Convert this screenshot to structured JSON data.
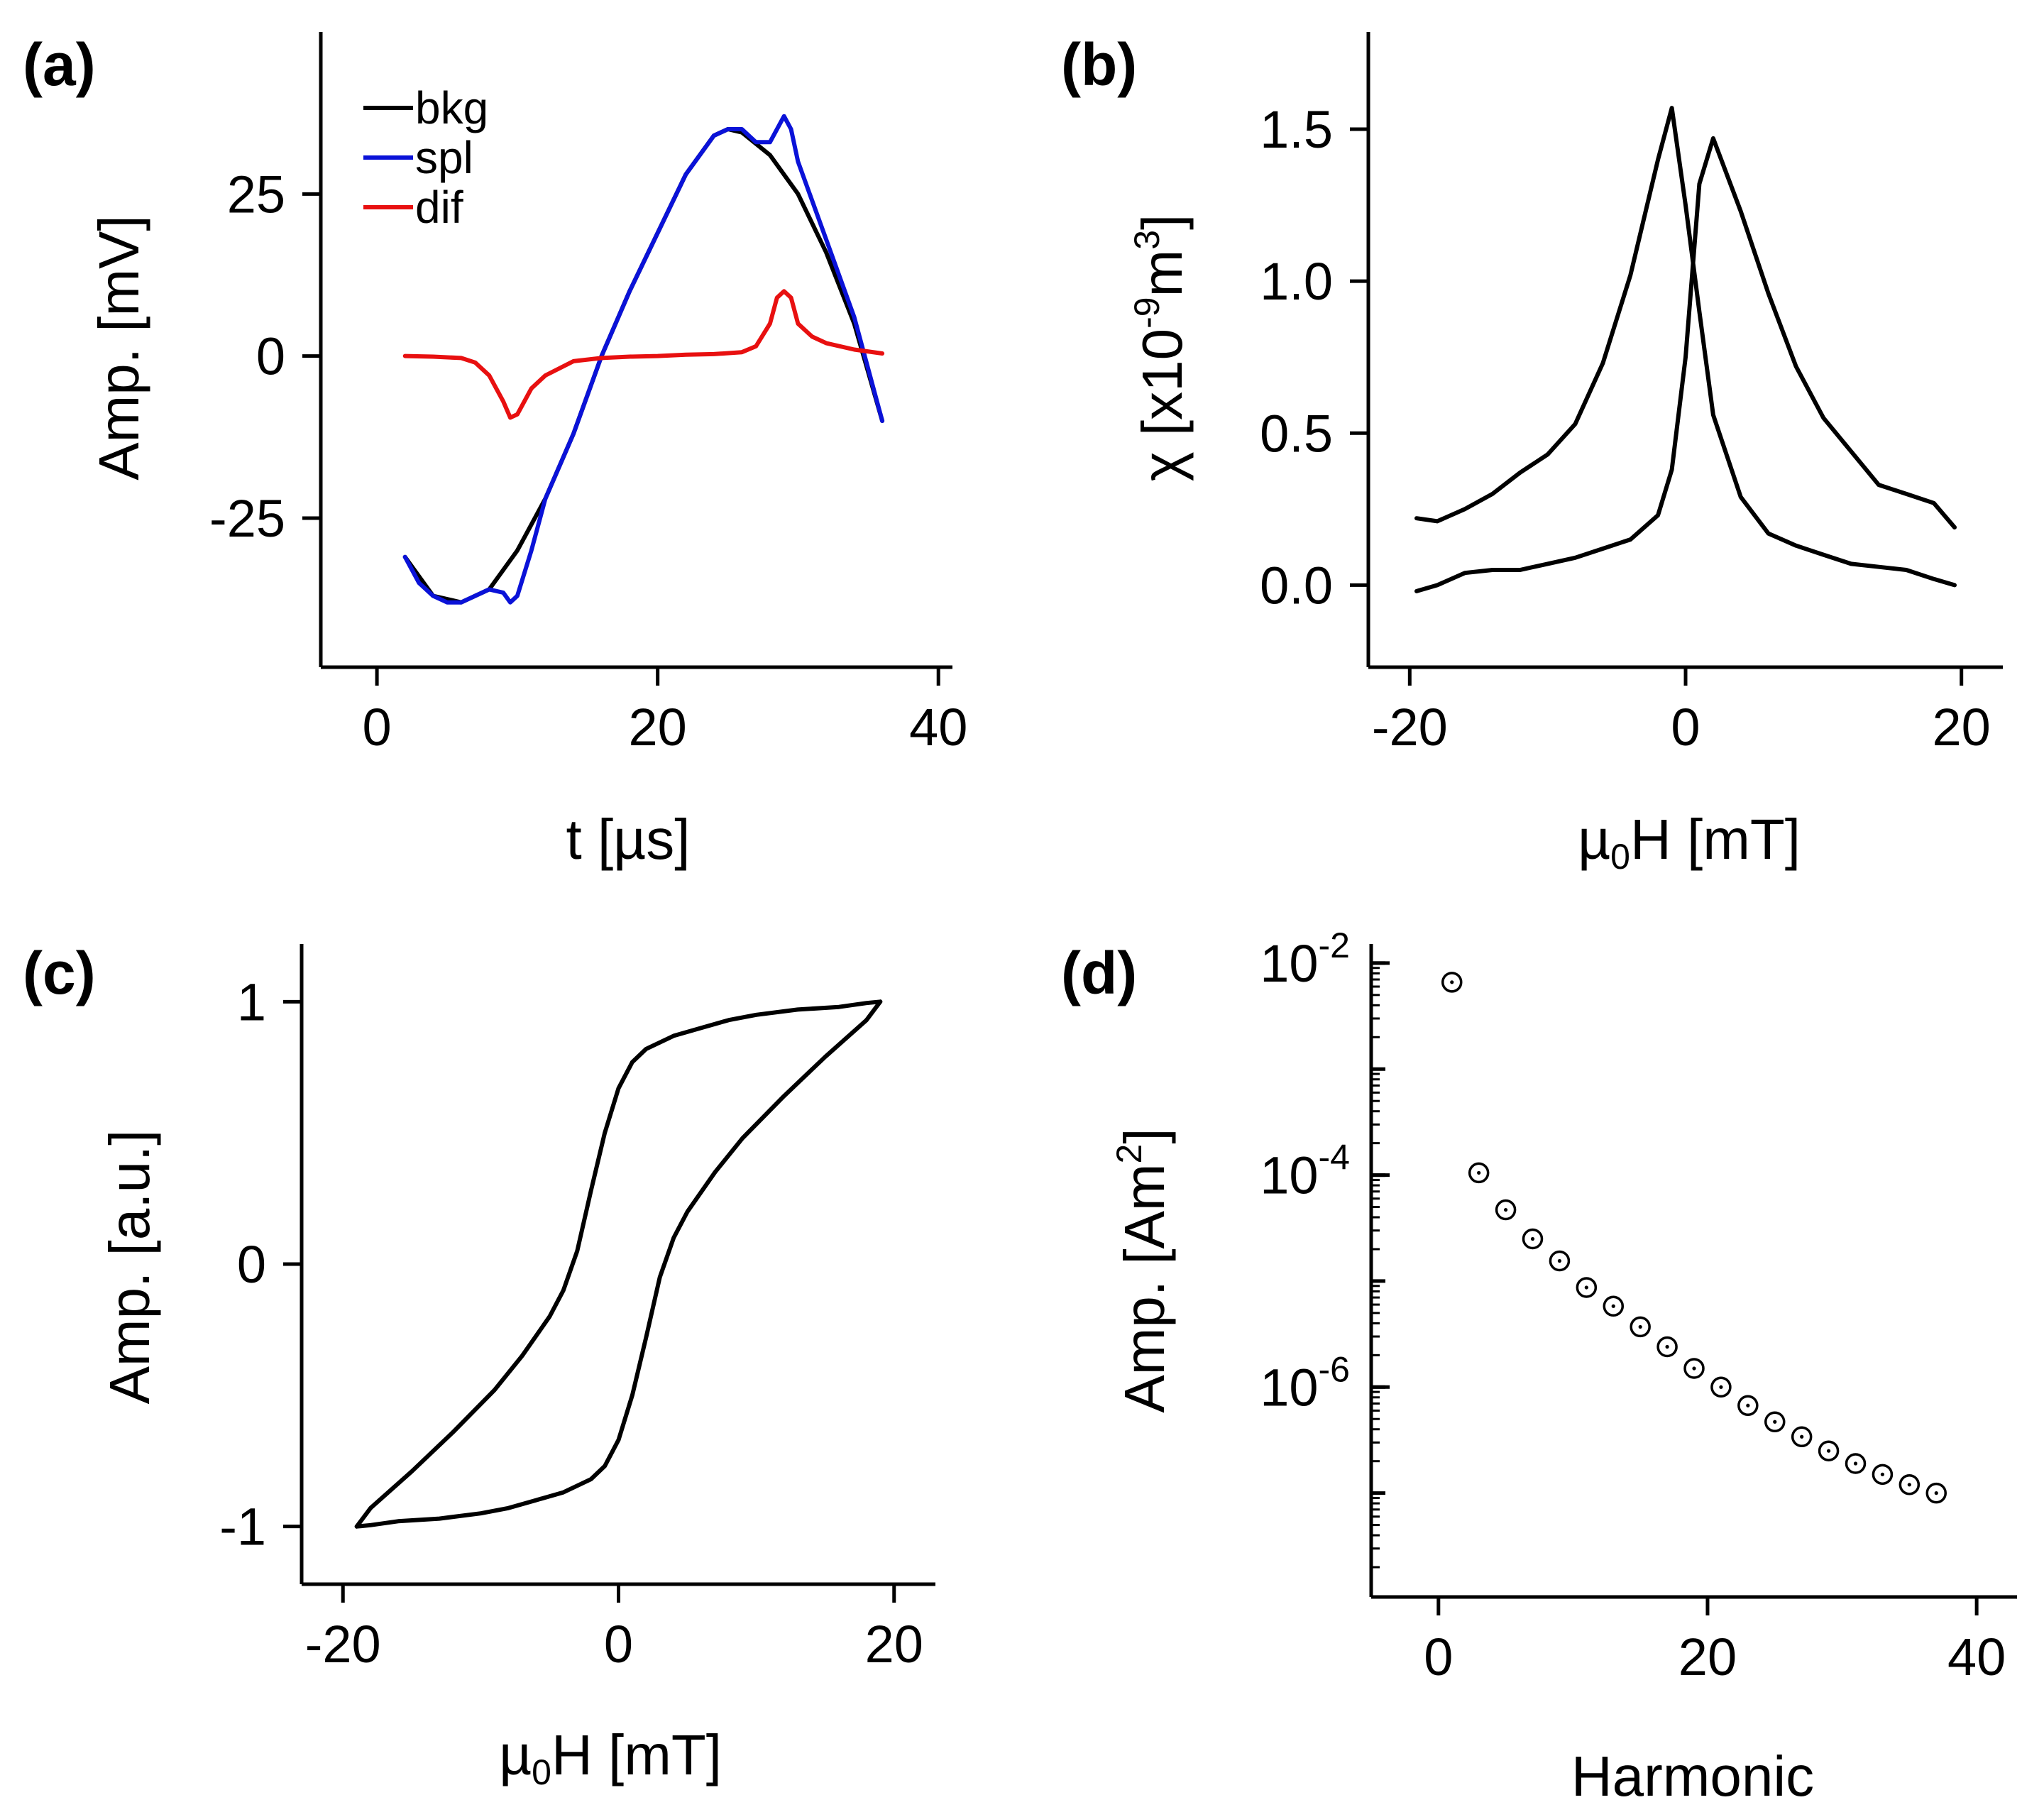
{
  "chart_data": [
    {
      "id": "a",
      "type": "line",
      "panel_label": "(a)",
      "xlabel": "t [µs]",
      "ylabel": "Amp. [mV]",
      "xlim": [
        -4,
        41
      ],
      "ylim": [
        -48,
        50
      ],
      "xticks": [
        0,
        20,
        40
      ],
      "yticks": [
        -25,
        0,
        25
      ],
      "legend": "top-left",
      "series": [
        {
          "name": "bkg",
          "color": "#000000",
          "x": [
            2,
            4,
            6,
            8,
            10,
            12,
            14,
            16,
            18,
            20,
            22,
            24,
            25,
            26,
            28,
            30,
            32,
            34,
            36
          ],
          "y": [
            -31,
            -37,
            -38,
            -36,
            -30,
            -22,
            -12,
            0,
            10,
            19,
            28,
            34,
            35,
            34.5,
            31,
            25,
            16,
            5,
            -10
          ]
        },
        {
          "name": "spl",
          "color": "#0a12d8",
          "x": [
            2,
            3,
            4,
            5,
            6,
            7,
            8,
            9,
            9.5,
            10,
            11,
            12,
            14,
            16,
            18,
            20,
            22,
            24,
            25,
            26,
            27,
            28,
            29,
            29.5,
            30,
            32,
            34,
            36
          ],
          "y": [
            -31,
            -35,
            -37,
            -38,
            -38,
            -37,
            -36,
            -36.5,
            -38,
            -37,
            -30,
            -22,
            -12,
            0,
            10,
            19,
            28,
            34,
            35,
            35,
            33,
            33,
            37,
            35,
            30,
            18,
            6,
            -10
          ]
        },
        {
          "name": "dif",
          "color": "#e81010",
          "x": [
            2,
            4,
            6,
            7,
            8,
            9,
            9.5,
            10,
            11,
            12,
            14,
            16,
            18,
            20,
            22,
            24,
            26,
            27,
            28,
            28.5,
            29,
            29.5,
            30,
            31,
            32,
            34,
            36
          ],
          "y": [
            0,
            -0.1,
            -0.3,
            -1,
            -3,
            -7,
            -9.5,
            -9,
            -5,
            -3,
            -0.8,
            -0.3,
            -0.1,
            0,
            0.2,
            0.3,
            0.6,
            1.5,
            5,
            9,
            10,
            9,
            5,
            3,
            2,
            1,
            0.4
          ]
        }
      ]
    },
    {
      "id": "b",
      "type": "line",
      "panel_label": "(b)",
      "xlabel": "µ0H [mT]",
      "ylabel": "χ [x10-9m3]",
      "xlim": [
        -23,
        23
      ],
      "ylim": [
        -0.27,
        1.82
      ],
      "xticks": [
        -20,
        0,
        20
      ],
      "yticks": [
        0.0,
        0.5,
        1.0,
        1.5
      ],
      "ytick_labels": [
        "0.0",
        "0.5",
        "1.0",
        "1.5"
      ],
      "series": [
        {
          "color": "#000000",
          "x": [
            -19.5,
            -18,
            -16,
            -14,
            -12,
            -10,
            -8,
            -6,
            -4,
            -2,
            -1,
            0,
            1,
            2,
            4,
            6,
            8,
            10,
            12,
            14,
            16,
            18,
            19.5
          ],
          "y": [
            0.22,
            0.21,
            0.25,
            0.3,
            0.37,
            0.43,
            0.53,
            0.73,
            1.02,
            1.4,
            1.57,
            1.25,
            0.9,
            0.56,
            0.29,
            0.17,
            0.13,
            0.1,
            0.07,
            0.06,
            0.05,
            0.02,
            0.0
          ]
        },
        {
          "color": "#000000",
          "x": [
            -19.5,
            -18,
            -16,
            -14,
            -12,
            -10,
            -8,
            -6,
            -4,
            -2,
            -1,
            0,
            1,
            2,
            4,
            6,
            8,
            10,
            12,
            14,
            16,
            18,
            19.5
          ],
          "y": [
            -0.02,
            0.0,
            0.04,
            0.05,
            0.05,
            0.07,
            0.09,
            0.12,
            0.15,
            0.23,
            0.38,
            0.75,
            1.32,
            1.47,
            1.23,
            0.96,
            0.72,
            0.55,
            0.44,
            0.33,
            0.3,
            0.27,
            0.19
          ]
        }
      ]
    },
    {
      "id": "c",
      "type": "line",
      "panel_label": "(c)",
      "xlabel": "µ0H [mT]",
      "ylabel": "Amp. [a.u.]",
      "xlim": [
        -23,
        23
      ],
      "ylim": [
        -1.22,
        1.22
      ],
      "xticks": [
        -20,
        0,
        20
      ],
      "yticks": [
        -1,
        0,
        1
      ],
      "series": [
        {
          "color": "#000000",
          "x": [
            -19,
            -18,
            -15,
            -12,
            -9,
            -7,
            -5,
            -4,
            -3,
            -2,
            -1,
            0,
            1,
            2,
            4,
            6,
            8,
            10,
            13,
            16,
            18,
            19
          ],
          "y": [
            -1.0,
            -0.93,
            -0.79,
            -0.64,
            -0.48,
            -0.35,
            -0.2,
            -0.1,
            0.05,
            0.28,
            0.5,
            0.67,
            0.77,
            0.82,
            0.87,
            0.9,
            0.93,
            0.95,
            0.97,
            0.98,
            0.995,
            1.0
          ]
        },
        {
          "color": "#000000",
          "x": [
            19,
            18,
            15,
            12,
            9,
            7,
            5,
            4,
            3,
            2,
            1,
            0,
            -1,
            -2,
            -4,
            -6,
            -8,
            -10,
            -13,
            -16,
            -18,
            -19
          ],
          "y": [
            1.0,
            0.93,
            0.79,
            0.64,
            0.48,
            0.35,
            0.2,
            0.1,
            -0.05,
            -0.28,
            -0.5,
            -0.67,
            -0.77,
            -0.82,
            -0.87,
            -0.9,
            -0.93,
            -0.95,
            -0.97,
            -0.98,
            -0.995,
            -1.0
          ]
        }
      ]
    },
    {
      "id": "d",
      "type": "scatter",
      "panel_label": "(d)",
      "xlabel": "Harmonic",
      "ylabel": "Amp. [Am2]",
      "xlim": [
        -5,
        43
      ],
      "ylim_log10": [
        -7.98,
        -1.82
      ],
      "xticks": [
        0,
        20,
        40
      ],
      "yticks_log10": [
        -6,
        -4,
        -2
      ],
      "y_scale": "log",
      "series": [
        {
          "color": "#000000",
          "x": [
            1,
            3,
            5,
            7,
            9,
            11,
            13,
            15,
            17,
            19,
            21,
            23,
            25,
            27,
            29,
            31,
            33,
            35,
            37
          ],
          "y": [
            0.0066,
            0.000105,
            4.7e-05,
            2.5e-05,
            1.55e-05,
            8.7e-06,
            5.8e-06,
            3.7e-06,
            2.4e-06,
            1.5e-06,
            1e-06,
            6.7e-07,
            4.7e-07,
            3.4e-07,
            2.5e-07,
            1.9e-07,
            1.5e-07,
            1.2e-07,
            1e-07
          ]
        }
      ]
    }
  ]
}
